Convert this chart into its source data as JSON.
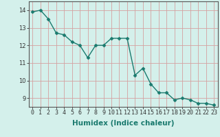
{
  "x": [
    0,
    1,
    2,
    3,
    4,
    5,
    6,
    7,
    8,
    9,
    10,
    11,
    12,
    13,
    14,
    15,
    16,
    17,
    18,
    19,
    20,
    21,
    22,
    23
  ],
  "y": [
    13.9,
    14.0,
    13.5,
    12.7,
    12.6,
    12.2,
    12.0,
    11.3,
    12.0,
    12.0,
    12.4,
    12.4,
    12.4,
    10.3,
    10.7,
    9.8,
    9.3,
    9.3,
    8.9,
    9.0,
    8.9,
    8.7,
    8.7,
    8.6
  ],
  "line_color": "#1a7a6e",
  "marker": "D",
  "marker_size": 2.5,
  "xlabel": "Humidex (Indice chaleur)",
  "ylim": [
    8.5,
    14.5
  ],
  "xlim": [
    -0.5,
    23.5
  ],
  "yticks": [
    9,
    10,
    11,
    12,
    13,
    14
  ],
  "xticks": [
    0,
    1,
    2,
    3,
    4,
    5,
    6,
    7,
    8,
    9,
    10,
    11,
    12,
    13,
    14,
    15,
    16,
    17,
    18,
    19,
    20,
    21,
    22,
    23
  ],
  "xtick_labels": [
    "0",
    "1",
    "2",
    "3",
    "4",
    "5",
    "6",
    "7",
    "8",
    "9",
    "10",
    "11",
    "12",
    "13",
    "14",
    "15",
    "16",
    "17",
    "18",
    "19",
    "20",
    "21",
    "22",
    "23"
  ],
  "background_color": "#d4f0eb",
  "grid_color": "#d4a0a0",
  "grid_alpha": 1.0,
  "xlabel_fontsize": 7.5,
  "tick_fontsize": 6,
  "line_width": 1.0
}
